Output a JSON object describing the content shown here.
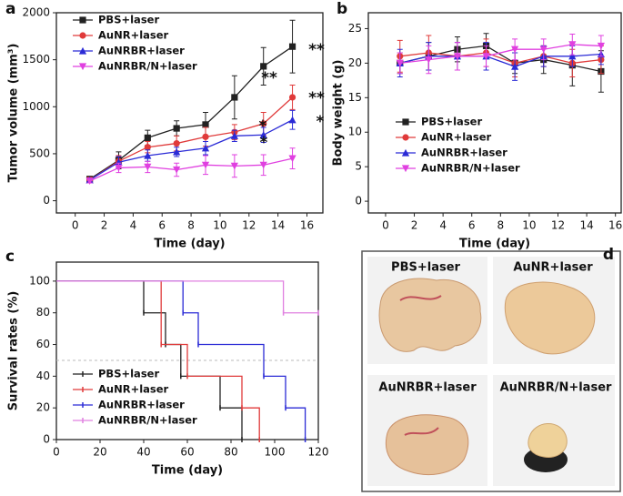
{
  "chart_data": [
    {
      "type": "line",
      "panel": "a",
      "xlabel": "Time (day)",
      "ylabel": "Tumor volume (mm³)",
      "x": [
        1,
        3,
        5,
        7,
        9,
        11,
        13,
        15
      ],
      "xlim": [
        -1.3,
        17.1
      ],
      "xticks": [
        0,
        2,
        4,
        6,
        8,
        10,
        12,
        14,
        16
      ],
      "ylim": [
        -130,
        2000
      ],
      "yticks": [
        0,
        500,
        1000,
        1500,
        2000
      ],
      "legend": "upper left",
      "series": [
        {
          "name": "PBS+laser",
          "color": "#222222",
          "marker": "square",
          "values": [
            230,
            430,
            670,
            770,
            810,
            1100,
            1430,
            1640
          ],
          "errors": [
            30,
            90,
            80,
            80,
            130,
            230,
            200,
            280
          ]
        },
        {
          "name": "AuNR+laser",
          "color": "#e03a3a",
          "marker": "circle",
          "values": [
            220,
            420,
            570,
            610,
            680,
            730,
            820,
            1100
          ],
          "errors": [
            30,
            60,
            60,
            80,
            100,
            80,
            120,
            130
          ]
        },
        {
          "name": "AuNRBR+laser",
          "color": "#2b2bd6",
          "marker": "triangle-up",
          "values": [
            220,
            410,
            480,
            520,
            560,
            690,
            700,
            860
          ],
          "errors": [
            20,
            60,
            60,
            50,
            70,
            60,
            80,
            100
          ]
        },
        {
          "name": "AuNRBR/N+laser",
          "color": "#e040e0",
          "marker": "triangle-down",
          "values": [
            210,
            350,
            360,
            330,
            380,
            370,
            380,
            450
          ],
          "errors": [
            20,
            50,
            60,
            70,
            100,
            120,
            110,
            110
          ]
        }
      ],
      "annotations": [
        "**",
        "**",
        "**",
        "*",
        "*",
        "*"
      ]
    },
    {
      "type": "line",
      "panel": "b",
      "xlabel": "Time (day)",
      "ylabel": "Body weight (g)",
      "x": [
        1,
        3,
        5,
        7,
        9,
        11,
        13,
        15
      ],
      "xlim": [
        -1.2,
        16.4
      ],
      "xticks": [
        0,
        2,
        4,
        6,
        8,
        10,
        12,
        14,
        16
      ],
      "ylim": [
        -1.7,
        27.3
      ],
      "yticks": [
        0,
        5,
        10,
        15,
        20,
        25
      ],
      "legend": "lower left",
      "series": [
        {
          "name": "PBS+laser",
          "color": "#222222",
          "marker": "square",
          "values": [
            20,
            21,
            22,
            22.5,
            20,
            20.5,
            19.7,
            18.8
          ],
          "errors": [
            1.5,
            2,
            1.8,
            1.8,
            1.5,
            2,
            3,
            3
          ]
        },
        {
          "name": "AuNR+laser",
          "color": "#e03a3a",
          "marker": "circle",
          "values": [
            21,
            21.5,
            21,
            21.5,
            20,
            21,
            20,
            20.5
          ],
          "errors": [
            2.3,
            2.5,
            2,
            2,
            2,
            1.5,
            2,
            2
          ]
        },
        {
          "name": "AuNRBR+laser",
          "color": "#2b2bd6",
          "marker": "triangle-up",
          "values": [
            20,
            21,
            21,
            21,
            19.5,
            21,
            21,
            21.3
          ],
          "errors": [
            2,
            2,
            2,
            2,
            2,
            1.5,
            1.5,
            1.5
          ]
        },
        {
          "name": "AuNRBR/N+laser",
          "color": "#e040e0",
          "marker": "triangle-down",
          "values": [
            20,
            20.5,
            21,
            21,
            22,
            22,
            22.7,
            22.5
          ],
          "errors": [
            1.5,
            2,
            2,
            1.5,
            1.5,
            1.5,
            1.5,
            1.5
          ]
        }
      ]
    },
    {
      "type": "step",
      "panel": "c",
      "xlabel": "Time (day)",
      "ylabel": "Survival rates (%)",
      "xlim": [
        0,
        120
      ],
      "xticks": [
        0,
        20,
        40,
        60,
        80,
        100,
        120
      ],
      "ylim": [
        0,
        112
      ],
      "yticks": [
        0,
        20,
        40,
        60,
        80,
        100
      ],
      "reference_line": 50,
      "legend": "lower left",
      "series": [
        {
          "name": "PBS+laser",
          "color": "#222222",
          "x": [
            0,
            40,
            50,
            57,
            75,
            85
          ],
          "values": [
            100,
            80,
            60,
            40,
            20,
            0
          ]
        },
        {
          "name": "AuNR+laser",
          "color": "#e03a3a",
          "x": [
            0,
            48,
            60,
            85,
            93
          ],
          "values": [
            100,
            60,
            40,
            20,
            0
          ]
        },
        {
          "name": "AuNRBR+laser",
          "color": "#2b2bd6",
          "x": [
            0,
            58,
            65,
            95,
            105,
            114
          ],
          "values": [
            100,
            80,
            60,
            40,
            20,
            0
          ]
        },
        {
          "name": "AuNRBR/N+laser",
          "color": "#e080e0",
          "x": [
            0,
            104,
            120
          ],
          "values": [
            100,
            80,
            80
          ]
        }
      ]
    }
  ],
  "photo_panel": {
    "panel": "d",
    "labels": [
      "PBS+laser",
      "AuNR+laser",
      "AuNRBR+laser",
      "AuNRBR/N+laser"
    ]
  }
}
